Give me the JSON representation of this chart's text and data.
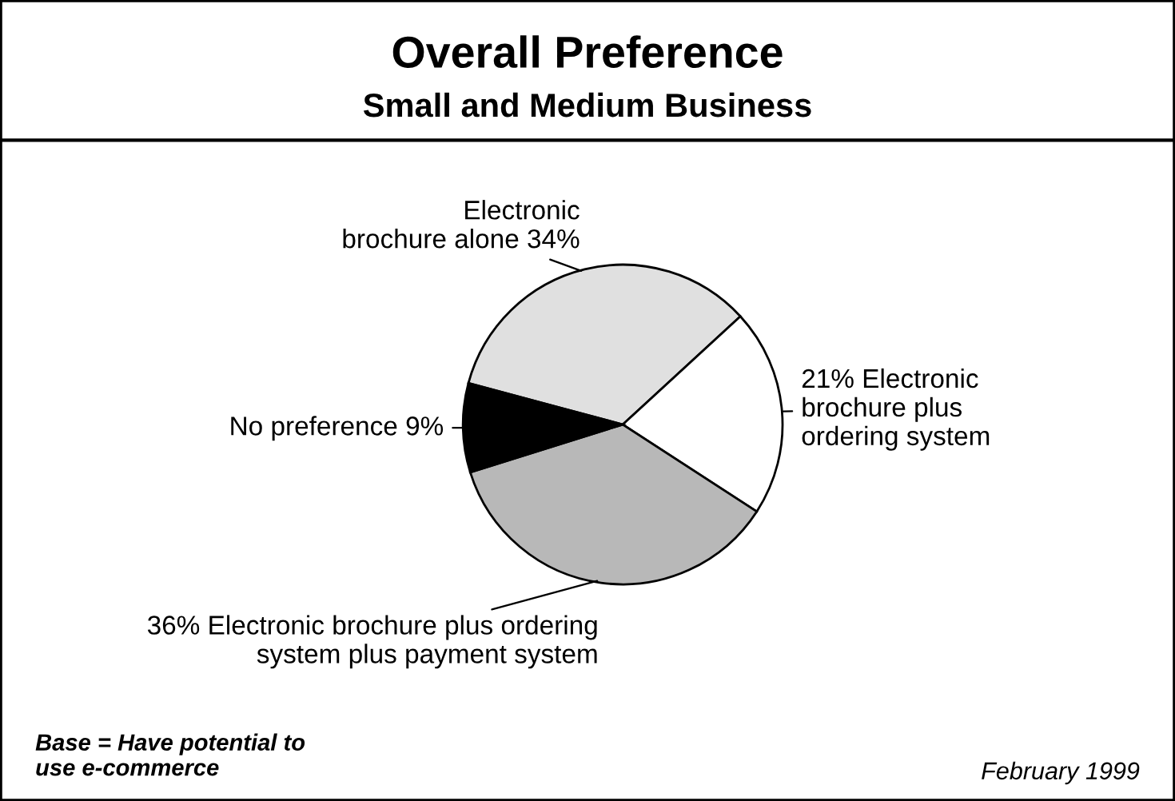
{
  "chart_data": {
    "type": "pie",
    "title": "Overall Preference",
    "subtitle": "Small and Medium Business",
    "categories": [
      "Electronic\nbrochure alone",
      "Electronic\nbrochure plus\nordering system",
      "Electronic brochure plus ordering\nsystem plus payment system",
      "No preference"
    ],
    "values": [
      34,
      21,
      36,
      9
    ],
    "value_labels": [
      "34%",
      "21%",
      "36%",
      "9%"
    ],
    "colors": [
      "#e0e0e0",
      "#ffffff",
      "#b8b8b8",
      "#000000"
    ],
    "annotations": [
      "Base = Have potential to\nuse e-commerce",
      "February 1999"
    ]
  }
}
